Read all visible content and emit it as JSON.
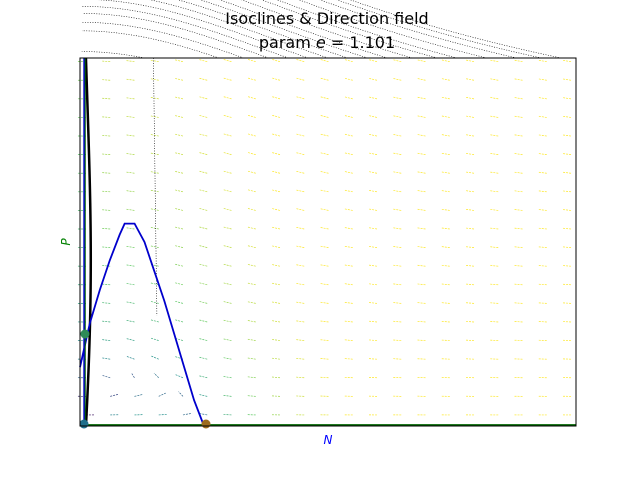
{
  "chart_data": {
    "type": "quiver",
    "title": "Isoclines & Direction field",
    "subtitle_prefix": "param ",
    "subtitle_param": "e",
    "subtitle_suffix": " = 1.101",
    "xlabel": "N",
    "ylabel": "P",
    "xlim": [
      0,
      1
    ],
    "ylim": [
      0,
      1
    ],
    "show_tick_labels": false,
    "grid": false,
    "colors": {
      "xlabel": "#0000ff",
      "ylabel": "#008000",
      "n_isocline": "#0000cc",
      "p_isocline": "#006400",
      "trajectory": "#000000",
      "equilibrium_origin": "#1f6f8b",
      "equilibrium_prey_only": "#9c6b1e",
      "equilibrium_coexist": "#2e8b57"
    },
    "n_isocline": {
      "x": [
        0.0,
        0.02,
        0.04,
        0.06,
        0.08,
        0.09,
        0.11,
        0.13,
        0.15,
        0.17,
        0.19,
        0.21,
        0.23,
        0.25
      ],
      "y": [
        0.16,
        0.28,
        0.37,
        0.45,
        0.52,
        0.55,
        0.55,
        0.5,
        0.42,
        0.34,
        0.25,
        0.16,
        0.07,
        0.0
      ]
    },
    "p_isocline_vertical_x": 0.01,
    "p_isocline_horizontal_y": 0.0,
    "equilibria": [
      {
        "x": 0.008,
        "y": 0.0
      },
      {
        "x": 0.254,
        "y": 0.0
      },
      {
        "x": 0.01,
        "y": 0.25
      }
    ],
    "direction_field": {
      "nx": 21,
      "ny": 20,
      "x_range": [
        0.012,
        0.99
      ],
      "y_range": [
        0.03,
        0.99
      ]
    }
  }
}
